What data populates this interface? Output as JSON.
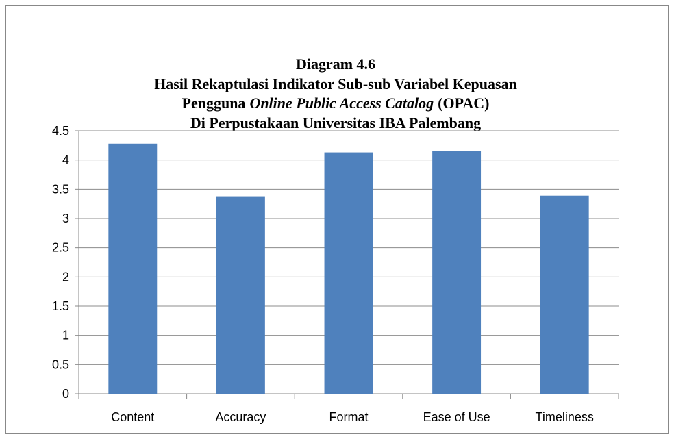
{
  "chart_data": {
    "type": "bar",
    "title": [
      "Diagram 4.6",
      "Hasil  Rekaptulasi Indikator Sub-sub Variabel Kepuasan",
      [
        "Pengguna",
        "Online Public Access Catalog",
        "(OPAC)"
      ],
      "Di Perpustakaan Universitas IBA Palembang"
    ],
    "categories": [
      "Content",
      "Accuracy",
      "Format",
      "Ease of Use",
      "Timeliness"
    ],
    "values": [
      4.28,
      3.38,
      4.13,
      4.16,
      3.39
    ],
    "color": "#4f81bd",
    "ylim": [
      0,
      4.5
    ],
    "yticks": [
      0,
      0.5,
      1,
      1.5,
      2,
      2.5,
      3,
      3.5,
      4,
      4.5
    ],
    "grid": true
  }
}
